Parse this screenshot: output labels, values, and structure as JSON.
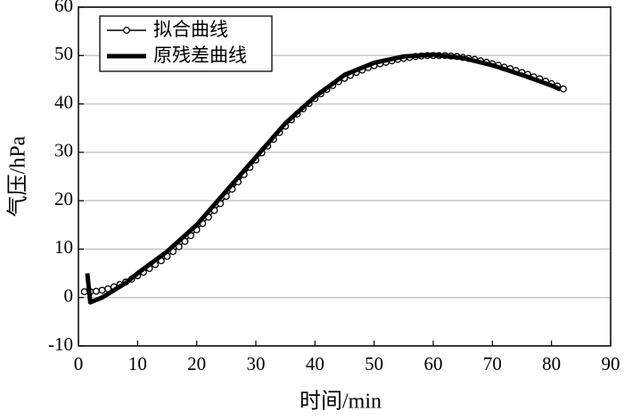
{
  "chart_data": {
    "type": "line",
    "xlabel": "时间/min",
    "ylabel": "气压/hPa",
    "xlim": [
      0,
      90
    ],
    "xticks": [
      0,
      10,
      20,
      30,
      40,
      50,
      60,
      70,
      80,
      90
    ],
    "ylim": [
      -10,
      60
    ],
    "yticks": [
      -10,
      0,
      10,
      20,
      30,
      40,
      50,
      60
    ],
    "grid": true,
    "legend": "upper left",
    "series": [
      {
        "name": "拟合曲线",
        "color": "#000000",
        "marker": "o",
        "linewidth": 1.5,
        "x": [
          1,
          2,
          3,
          4,
          5,
          6,
          7,
          8,
          9,
          10,
          11,
          12,
          13,
          14,
          15,
          16,
          17,
          18,
          19,
          20,
          21,
          22,
          23,
          24,
          25,
          26,
          27,
          28,
          29,
          30,
          31,
          32,
          33,
          34,
          35,
          36,
          37,
          38,
          39,
          40,
          41,
          42,
          43,
          44,
          45,
          46,
          47,
          48,
          49,
          50,
          51,
          52,
          53,
          54,
          55,
          56,
          57,
          58,
          59,
          60,
          61,
          62,
          63,
          64,
          65,
          66,
          67,
          68,
          69,
          70,
          71,
          72,
          73,
          74,
          75,
          76,
          77,
          78,
          79,
          80,
          81,
          82
        ],
        "values": [
          1.2,
          1.2,
          1.3,
          1.5,
          1.8,
          2.2,
          2.7,
          3.2,
          3.8,
          4.5,
          5.2,
          6.0,
          6.8,
          7.6,
          8.5,
          9.5,
          10.5,
          11.6,
          12.8,
          14.0,
          15.3,
          16.6,
          18.0,
          19.4,
          20.9,
          22.4,
          23.9,
          25.4,
          26.9,
          28.4,
          29.9,
          31.3,
          32.7,
          34.1,
          35.4,
          36.7,
          37.9,
          39.0,
          40.1,
          41.1,
          42.1,
          43.0,
          43.8,
          44.6,
          45.3,
          45.9,
          46.5,
          47.0,
          47.5,
          47.9,
          48.3,
          48.6,
          48.9,
          49.2,
          49.4,
          49.6,
          49.8,
          49.9,
          50.0,
          50.0,
          50.0,
          50.0,
          49.9,
          49.8,
          49.6,
          49.4,
          49.2,
          48.9,
          48.6,
          48.3,
          48.0,
          47.6,
          47.3,
          46.9,
          46.5,
          46.1,
          45.6,
          45.2,
          44.7,
          44.2,
          43.7,
          43.1
        ]
      },
      {
        "name": "原残差曲线",
        "color": "#000000",
        "marker": null,
        "linewidth": 5,
        "x": [
          1.5,
          2,
          4,
          6,
          8,
          10,
          15,
          20,
          25,
          30,
          35,
          40,
          45,
          50,
          55,
          60,
          65,
          70,
          75,
          80,
          81.5
        ],
        "values": [
          5,
          -1,
          0,
          1.5,
          3,
          5,
          9.5,
          15,
          22,
          29,
          36,
          41.5,
          46,
          48.5,
          49.8,
          50.2,
          49.5,
          48,
          46,
          43.8,
          43
        ]
      }
    ]
  }
}
